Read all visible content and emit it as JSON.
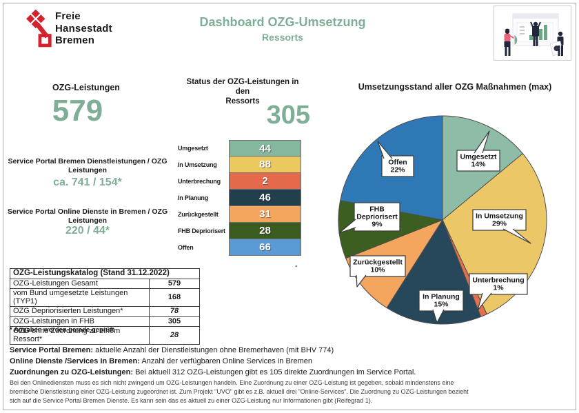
{
  "header": {
    "logo_lines": [
      "Freie",
      "Hansestadt",
      "Bremen"
    ],
    "brand_red": "#d2232e",
    "accent_green": "#7fae96",
    "title": "Dashboard OZG-Umsetzung",
    "subtitle": "Ressorts",
    "illustration": "people-presenting-chart-illustration"
  },
  "left_panel": {
    "title": "OZG-Leistungen",
    "total": "579",
    "metrics": [
      {
        "label_lines": [
          "Service Portal Bremen Dienstleistungen / OZG",
          "Leistungen"
        ],
        "value": "ca. 741 / 154*"
      },
      {
        "label_lines": [
          "Service Portal Online Dienste in Bremen / OZG",
          "Leistungen"
        ],
        "value": "220 / 44*"
      }
    ]
  },
  "status_panel": {
    "title_lines": [
      "Status der OZG-Leistungen in den",
      "Ressorts"
    ],
    "total": "305",
    "trailing_dot": ".",
    "rows": [
      {
        "label": "Umgesetzt",
        "value": "44",
        "color": "#85b69e"
      },
      {
        "label": "In Umsetzung",
        "value": "88",
        "color": "#ecc95f"
      },
      {
        "label": "Unterbrechung",
        "value": "2",
        "color": "#e56a4c"
      },
      {
        "label": "In Planung",
        "value": "46",
        "color": "#223f4e"
      },
      {
        "label": "Zurückgestellt",
        "value": "31",
        "color": "#f4a55e"
      },
      {
        "label": "FHB Depriorisert",
        "value": "28",
        "color": "#3a5c1e"
      },
      {
        "label": "Offen",
        "value": "66",
        "color": "#5b9bd5"
      }
    ]
  },
  "chart_data": [
    {
      "type": "pie",
      "title": "Umsetzungsstand aller OZG Maßnahmen (max)",
      "start_angle": "12-o-clock",
      "direction": "clockwise",
      "legend_style": "callout-labels",
      "slices": [
        {
          "label": "Umgesetzt",
          "pct": 14,
          "color": "#8fbca6"
        },
        {
          "label": "In Umsetzung",
          "pct": 29,
          "color": "#ebc768"
        },
        {
          "label": "Unterbrechung",
          "pct": 1,
          "color": "#e2704f"
        },
        {
          "label": "In Planung",
          "pct": 15,
          "color": "#27485a"
        },
        {
          "label": "Zurückgestellt",
          "pct": 10,
          "color": "#f4a55e"
        },
        {
          "label": "FHB Depriorisert",
          "pct": 9,
          "color": "#3c5e20"
        },
        {
          "label": "Offen",
          "pct": 22,
          "color": "#2f78b6"
        }
      ]
    },
    {
      "type": "bar",
      "title": "Status der OZG-Leistungen in den Ressorts",
      "total": 305,
      "categories": [
        "Umgesetzt",
        "In Umsetzung",
        "Unterbrechung",
        "In Planung",
        "Zurückgestellt",
        "FHB Depriorisert",
        "Offen"
      ],
      "values": [
        44,
        88,
        2,
        46,
        31,
        28,
        66
      ],
      "colors": [
        "#85b69e",
        "#ecc95f",
        "#e56a4c",
        "#223f4e",
        "#f4a55e",
        "#3a5c1e",
        "#5b9bd5"
      ]
    }
  ],
  "katalog_table": {
    "header": "OZG-Leistungskatalog (Stand 31.12.2022)",
    "rows": [
      {
        "label": "OZG-Leistungen Gesamt",
        "value": "579",
        "italic": false
      },
      {
        "label": "vom Bund umgesetzte Leistungen (TYP1)",
        "value": "168",
        "italic": false
      },
      {
        "label": "OZG Depriorisierten Leistungen*",
        "value": "78",
        "italic": true
      },
      {
        "label": "OZG-Leistungen in FHB",
        "value": "305",
        "italic": false
      },
      {
        "label": "OZG ohne Zuordnung zu einem Ressort*",
        "value": "28",
        "italic": true
      }
    ],
    "footnote": "* Angaben werden gerade geprüft"
  },
  "footer": {
    "lines": [
      {
        "bold": "Service Portal Bremen:",
        "rest": " aktuelle Anzahl der Dienstleistungen ohne Bremerhaven (mit BHV 774)"
      },
      {
        "bold": "Online Dienste /Services in Bremen:",
        "rest": " Anzahl der verfügbaren Online Services in Bremen"
      },
      {
        "bold": "Zuordnungen zu OZG-Leistungen:",
        "rest": " Bei aktuell 312 OZG-Leistungen gibt es 105 direkte Zuordnungen im Service Portal."
      }
    ],
    "small_lines": [
      "Bei den Onlinediensten muss es sich nicht zwingend um OZG-Leistungen handeln. Eine Zuordnung zu einer OZG-Leistung ist gegeben, sobald mindenstens eine",
      "bremische Dienstleistung einer OZG-Leistung zugeordnet ist. Zum Projekt \"UVO\" gibt es z.B. aktuell drei \"Online-Services\". Die Zuordnung zu OZG-Leistungen bezieht",
      "sich auf die Service Portal Bremen Dienste. Es kann sein das es aktuell zu einer OZG-Leistung nur Informationen gibt (Reifegrad 1)."
    ]
  }
}
